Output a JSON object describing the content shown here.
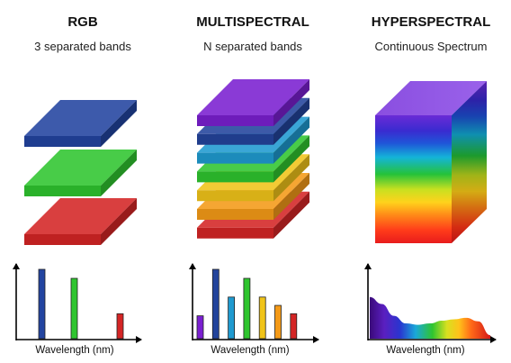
{
  "panels": {
    "rgb": {
      "title": "RGB",
      "subtitle": "3 separated bands",
      "xlabel": "Wavelength (nm)",
      "band_colors": [
        "#2244a0",
        "#2fc52f",
        "#d42525"
      ]
    },
    "multispectral": {
      "title": "MULTISPECTRAL",
      "subtitle": "N separated bands",
      "xlabel": "Wavelength (nm)",
      "band_colors": [
        "#7a1fd0",
        "#23449c",
        "#1f9ad0",
        "#2fc52f",
        "#f0c419",
        "#f49a17",
        "#d42525"
      ]
    },
    "hyperspectral": {
      "title": "HYPERSPECTRAL",
      "subtitle": "Continuous Spectrum",
      "xlabel": "Wavelength (nm)"
    }
  },
  "chart_data": [
    {
      "type": "bar",
      "title": "",
      "xlabel": "Wavelength (nm)",
      "ylabel": "",
      "categories": [
        "blue",
        "green",
        "red"
      ],
      "values": [
        1.0,
        0.87,
        0.36
      ],
      "colors": [
        "#2244a0",
        "#2fc52f",
        "#d42525"
      ]
    },
    {
      "type": "bar",
      "title": "",
      "xlabel": "Wavelength (nm)",
      "ylabel": "",
      "categories": [
        "violet",
        "blue",
        "cyan",
        "green",
        "yellow",
        "orange",
        "red"
      ],
      "values": [
        0.33,
        1.0,
        0.6,
        0.87,
        0.6,
        0.48,
        0.36
      ],
      "colors": [
        "#7a1fd0",
        "#23449c",
        "#1f9ad0",
        "#2fc52f",
        "#f0c419",
        "#f49a17",
        "#d42525"
      ]
    },
    {
      "type": "area",
      "title": "",
      "xlabel": "Wavelength (nm)",
      "ylabel": "",
      "x": [
        0,
        0.1,
        0.2,
        0.3,
        0.4,
        0.5,
        0.6,
        0.7,
        0.8,
        0.9,
        1.0
      ],
      "values": [
        0.6,
        0.5,
        0.33,
        0.22,
        0.2,
        0.22,
        0.26,
        0.28,
        0.3,
        0.25,
        0.05
      ]
    }
  ]
}
